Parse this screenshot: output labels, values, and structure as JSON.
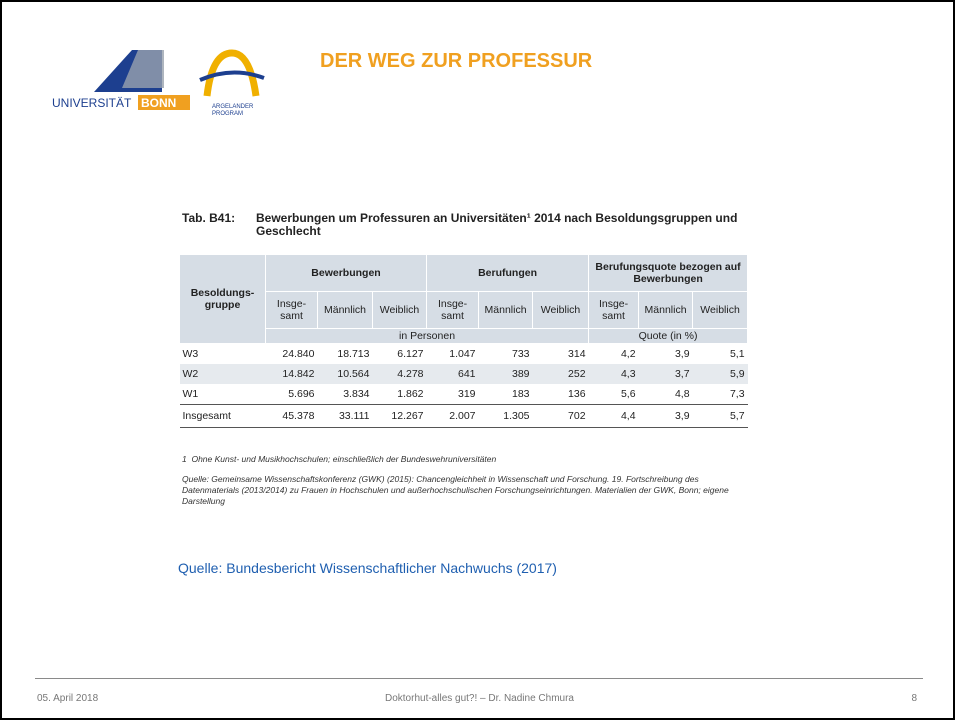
{
  "logo": {
    "university": "UNIVERSITÄT",
    "bonn": "BONN",
    "program_1": "ARGELANDER",
    "program_2": "PROGRAM"
  },
  "title": "DER WEG ZUR PROFESSUR",
  "table": {
    "caption_label": "Tab. B41:",
    "caption": "Bewerbungen um Professuren an Universitäten¹ 2014 nach Besoldungsgruppen und Geschlecht",
    "row_header": "Besoldungs-gruppe",
    "groups": [
      {
        "name": "Bewerbungen",
        "columns": [
          "Insge-samt",
          "Männlich",
          "Weiblich"
        ]
      },
      {
        "name": "Berufungen",
        "columns": [
          "Insge-samt",
          "Männlich",
          "Weiblich"
        ]
      },
      {
        "name": "Berufungsquote bezogen auf Bewerbungen",
        "columns": [
          "Insge-samt",
          "Männlich",
          "Weiblich"
        ]
      }
    ],
    "units": [
      "in Personen",
      "Quote (in %)"
    ],
    "rows": [
      [
        "W3",
        "24.840",
        "18.713",
        "6.127",
        "1.047",
        "733",
        "314",
        "4,2",
        "3,9",
        "5,1"
      ],
      [
        "W2",
        "14.842",
        "10.564",
        "4.278",
        "641",
        "389",
        "252",
        "4,3",
        "3,7",
        "5,9"
      ],
      [
        "W1",
        "5.696",
        "3.834",
        "1.862",
        "319",
        "183",
        "136",
        "5,6",
        "4,8",
        "7,3"
      ],
      [
        "Insgesamt",
        "45.378",
        "33.111",
        "12.267",
        "2.007",
        "1.305",
        "702",
        "4,4",
        "3,9",
        "5,7"
      ]
    ],
    "footnote_mark": "1",
    "footnote": "Ohne Kunst- und Musikhochschulen; einschließlich der Bundeswehruniversitäten",
    "source": "Quelle: Gemeinsame Wissenschaftskonferenz (GWK) (2015): Chancengleichheit in Wissenschaft und Forschung. 19. Fortschreibung des Datenmaterials (2013/2014) zu Frauen in Hochschulen und außerhochschulischen Forschungseinrichtungen. Materialien der GWK, Bonn; eigene Darstellung"
  },
  "source_note": "Quelle: Bundesbericht Wissenschaftlicher Nachwuchs (2017)",
  "footer": {
    "date": "05. April 2018",
    "center": "Doktorhut-alles gut?! – Dr. Nadine Chmura",
    "page": "8"
  }
}
